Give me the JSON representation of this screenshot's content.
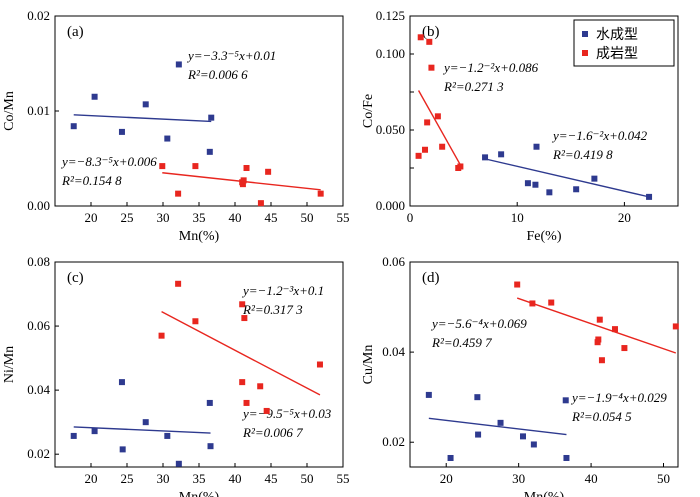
{
  "chart_data": [
    {
      "type": "scatter",
      "panel_label": "(a)",
      "xlabel": "Mn(%)",
      "ylabel": "Co/Mn",
      "xlim": [
        15,
        55
      ],
      "ylim": [
        0,
        0.02
      ],
      "xticks": [
        20,
        25,
        30,
        35,
        40,
        45,
        50,
        55
      ],
      "yticks": [
        0,
        0.01,
        0.02
      ],
      "ytick_labels": [
        "0.00",
        "0.01",
        "0.02"
      ],
      "series": [
        {
          "color": "#2e3a8f",
          "points": [
            [
              17.6,
              0.0084
            ],
            [
              20.5,
              0.0115
            ],
            [
              24.3,
              0.0078
            ],
            [
              27.6,
              0.0107
            ],
            [
              30.6,
              0.0071
            ],
            [
              32.2,
              0.0149
            ],
            [
              36.5,
              0.0057
            ],
            [
              36.7,
              0.0093
            ]
          ],
          "fit": {
            "x": [
              17.6,
              36.7
            ],
            "y": [
              0.0096,
              0.0089
            ]
          },
          "equation": "y=−3.3⁻⁵x+0.01",
          "r2": "R²=0.006 6"
        },
        {
          "color": "#e8261f",
          "points": [
            [
              29.9,
              0.0042
            ],
            [
              32.1,
              0.0013
            ],
            [
              34.5,
              0.0042
            ],
            [
              41.0,
              0.0025
            ],
            [
              41.1,
              0.0023
            ],
            [
              41.2,
              0.0027
            ],
            [
              41.6,
              0.004
            ],
            [
              43.6,
              0.0003
            ],
            [
              44.6,
              0.0036
            ],
            [
              51.9,
              0.0013
            ]
          ],
          "fit": {
            "x": [
              29.9,
              51.9
            ],
            "y": [
              0.0035,
              0.0017
            ]
          },
          "equation": "y=−8.3⁻⁵x+0.006",
          "r2": "R²=0.154 8"
        }
      ]
    },
    {
      "type": "scatter",
      "panel_label": "(b)",
      "xlabel": "Fe(%)",
      "ylabel": "Co/Fe",
      "xlim": [
        0,
        25
      ],
      "ylim": [
        0,
        0.125
      ],
      "xticks": [
        0,
        10,
        20
      ],
      "yticks": [
        0,
        0.025,
        0.05,
        0.075,
        0.1,
        0.125
      ],
      "ytick_labels": [
        "0.000",
        "",
        "0.050",
        "",
        "0.100",
        "0.125"
      ],
      "legend": {
        "position": "top-right",
        "entries": [
          "水成型",
          "成岩型"
        ]
      },
      "series": [
        {
          "name": "水成型",
          "color": "#2e3a8f",
          "points": [
            [
              7.0,
              0.032
            ],
            [
              8.5,
              0.034
            ],
            [
              11.0,
              0.015
            ],
            [
              11.7,
              0.014
            ],
            [
              11.8,
              0.039
            ],
            [
              13.0,
              0.009
            ],
            [
              15.5,
              0.011
            ],
            [
              17.2,
              0.018
            ],
            [
              22.3,
              0.006
            ]
          ],
          "fit": {
            "x": [
              7.0,
              22.3
            ],
            "y": [
              0.031,
              0.006
            ]
          },
          "equation": "y=−1.6⁻²x+0.042",
          "r2": "R²=0.419 8"
        },
        {
          "name": "成岩型",
          "color": "#e8261f",
          "points": [
            [
              0.8,
              0.033
            ],
            [
              1.0,
              0.111
            ],
            [
              1.4,
              0.037
            ],
            [
              1.6,
              0.055
            ],
            [
              1.8,
              0.108
            ],
            [
              2.0,
              0.091
            ],
            [
              2.6,
              0.059
            ],
            [
              3.0,
              0.039
            ],
            [
              4.5,
              0.025
            ],
            [
              4.7,
              0.026
            ]
          ],
          "fit": {
            "x": [
              0.8,
              4.7
            ],
            "y": [
              0.076,
              0.027
            ]
          },
          "equation": "y=−1.2⁻²x+0.086",
          "r2": "R²=0.271 3"
        }
      ]
    },
    {
      "type": "scatter",
      "panel_label": "(c)",
      "xlabel": "Mn(%)",
      "ylabel": "Ni/Mn",
      "xlim": [
        15,
        55
      ],
      "ylim": [
        0.016,
        0.08
      ],
      "xticks": [
        20,
        25,
        30,
        35,
        40,
        45,
        50,
        55
      ],
      "yticks": [
        0.02,
        0.04,
        0.06,
        0.08
      ],
      "ytick_labels": [
        "0.02",
        "0.04",
        "0.06",
        "0.08"
      ],
      "series": [
        {
          "color": "#2e3a8f",
          "points": [
            [
              17.6,
              0.0257
            ],
            [
              20.5,
              0.0272
            ],
            [
              24.3,
              0.0425
            ],
            [
              24.4,
              0.0215
            ],
            [
              27.6,
              0.03
            ],
            [
              30.6,
              0.0257
            ],
            [
              32.2,
              0.017
            ],
            [
              36.5,
              0.036
            ],
            [
              36.6,
              0.0225
            ]
          ],
          "fit": {
            "x": [
              17.6,
              36.6
            ],
            "y": [
              0.0285,
              0.0266
            ]
          },
          "equation": "y=−9.5⁻⁵x+0.03",
          "r2": "R²=0.006 7"
        },
        {
          "color": "#e8261f",
          "points": [
            [
              29.8,
              0.057
            ],
            [
              32.1,
              0.0732
            ],
            [
              34.5,
              0.0615
            ],
            [
              41.0,
              0.0668
            ],
            [
              41.0,
              0.0425
            ],
            [
              41.3,
              0.0625
            ],
            [
              41.6,
              0.036
            ],
            [
              43.5,
              0.0412
            ],
            [
              44.4,
              0.0335
            ],
            [
              51.8,
              0.048
            ]
          ],
          "fit": {
            "x": [
              29.8,
              51.8
            ],
            "y": [
              0.0645,
              0.0385
            ]
          },
          "equation": "y=−1.2⁻³x+0.1",
          "r2": "R²=0.317 3"
        }
      ]
    },
    {
      "type": "scatter",
      "panel_label": "(d)",
      "xlabel": "Mn(%)",
      "ylabel": "Cu/Mn",
      "xlim": [
        15,
        52
      ],
      "ylim": [
        0.0145,
        0.06
      ],
      "xticks": [
        20,
        30,
        40,
        50
      ],
      "yticks": [
        0.02,
        0.04,
        0.06
      ],
      "ytick_labels": [
        "0.02",
        "0.04",
        "0.06"
      ],
      "series": [
        {
          "color": "#2e3a8f",
          "points": [
            [
              17.6,
              0.0305
            ],
            [
              20.6,
              0.0165
            ],
            [
              24.3,
              0.03
            ],
            [
              24.4,
              0.0217
            ],
            [
              27.5,
              0.0243
            ],
            [
              30.6,
              0.0213
            ],
            [
              32.1,
              0.0195
            ],
            [
              36.5,
              0.0293
            ],
            [
              36.6,
              0.0165
            ]
          ],
          "fit": {
            "x": [
              17.6,
              36.6
            ],
            "y": [
              0.0253,
              0.0217
            ]
          },
          "equation": "y=−1.9⁻⁴x+0.029",
          "r2": "R²=0.054 5"
        },
        {
          "color": "#e8261f",
          "points": [
            [
              29.8,
              0.055
            ],
            [
              31.9,
              0.0508
            ],
            [
              34.5,
              0.051
            ],
            [
              40.9,
              0.0422
            ],
            [
              41.0,
              0.0428
            ],
            [
              41.2,
              0.0472
            ],
            [
              41.5,
              0.0382
            ],
            [
              43.3,
              0.0451
            ],
            [
              44.6,
              0.0409
            ],
            [
              51.7,
              0.0457
            ]
          ],
          "fit": {
            "x": [
              29.8,
              51.7
            ],
            "y": [
              0.052,
              0.0398
            ]
          },
          "equation": "y=−5.6⁻⁴x+0.069",
          "r2": "R²=0.459 7"
        }
      ]
    }
  ]
}
